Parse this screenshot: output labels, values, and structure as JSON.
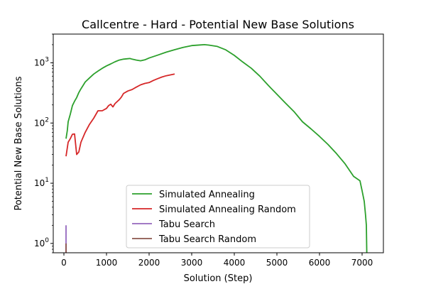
{
  "chart_data": {
    "type": "line",
    "title": "Callcentre - Hard - Potential New Base Solutions",
    "xlabel": "Solution (Step)",
    "ylabel": "Potential New Base Solutions",
    "xlim": [
      -250,
      7500
    ],
    "ylim": [
      0.7,
      3000
    ],
    "yscale": "log",
    "x_ticks": [
      0,
      1000,
      2000,
      3000,
      4000,
      5000,
      6000,
      7000
    ],
    "y_ticks": [
      {
        "value": 1,
        "base": "10",
        "exp": "0"
      },
      {
        "value": 10,
        "base": "10",
        "exp": "1"
      },
      {
        "value": 100,
        "base": "10",
        "exp": "2"
      },
      {
        "value": 1000,
        "base": "10",
        "exp": "3"
      }
    ],
    "grid": false,
    "legend_position": "lower-center",
    "series": [
      {
        "name": "Simulated Annealing",
        "color": "#2ca02c",
        "points": [
          [
            50,
            55
          ],
          [
            80,
            75
          ],
          [
            100,
            105
          ],
          [
            150,
            140
          ],
          [
            200,
            195
          ],
          [
            250,
            230
          ],
          [
            300,
            265
          ],
          [
            350,
            320
          ],
          [
            400,
            370
          ],
          [
            450,
            420
          ],
          [
            500,
            480
          ],
          [
            600,
            560
          ],
          [
            700,
            650
          ],
          [
            800,
            730
          ],
          [
            900,
            810
          ],
          [
            1000,
            890
          ],
          [
            1100,
            960
          ],
          [
            1200,
            1040
          ],
          [
            1300,
            1110
          ],
          [
            1400,
            1150
          ],
          [
            1500,
            1170
          ],
          [
            1550,
            1180
          ],
          [
            1600,
            1150
          ],
          [
            1700,
            1110
          ],
          [
            1800,
            1080
          ],
          [
            1900,
            1120
          ],
          [
            2000,
            1200
          ],
          [
            2200,
            1340
          ],
          [
            2400,
            1500
          ],
          [
            2600,
            1650
          ],
          [
            2800,
            1800
          ],
          [
            3000,
            1930
          ],
          [
            3200,
            1980
          ],
          [
            3300,
            2000
          ],
          [
            3400,
            1970
          ],
          [
            3600,
            1870
          ],
          [
            3800,
            1640
          ],
          [
            4000,
            1330
          ],
          [
            4200,
            1030
          ],
          [
            4400,
            810
          ],
          [
            4600,
            600
          ],
          [
            4800,
            420
          ],
          [
            5000,
            300
          ],
          [
            5200,
            215
          ],
          [
            5400,
            155
          ],
          [
            5600,
            105
          ],
          [
            5800,
            80
          ],
          [
            6000,
            60
          ],
          [
            6200,
            44
          ],
          [
            6400,
            31
          ],
          [
            6600,
            21
          ],
          [
            6800,
            13
          ],
          [
            6950,
            11
          ],
          [
            7000,
            7.5
          ],
          [
            7050,
            5
          ],
          [
            7080,
            3
          ],
          [
            7100,
            2
          ],
          [
            7110,
            0.7
          ]
        ]
      },
      {
        "name": "Simulated Annealing Random",
        "color": "#d62728",
        "points": [
          [
            50,
            28
          ],
          [
            100,
            48
          ],
          [
            150,
            55
          ],
          [
            200,
            65
          ],
          [
            250,
            66
          ],
          [
            300,
            30
          ],
          [
            350,
            33
          ],
          [
            400,
            48
          ],
          [
            500,
            70
          ],
          [
            600,
            95
          ],
          [
            700,
            120
          ],
          [
            800,
            160
          ],
          [
            900,
            160
          ],
          [
            1000,
            175
          ],
          [
            1050,
            195
          ],
          [
            1100,
            205
          ],
          [
            1150,
            185
          ],
          [
            1200,
            210
          ],
          [
            1300,
            245
          ],
          [
            1350,
            270
          ],
          [
            1400,
            310
          ],
          [
            1500,
            340
          ],
          [
            1600,
            360
          ],
          [
            1700,
            395
          ],
          [
            1800,
            430
          ],
          [
            1900,
            455
          ],
          [
            2000,
            470
          ],
          [
            2100,
            510
          ],
          [
            2200,
            545
          ],
          [
            2300,
            580
          ],
          [
            2400,
            610
          ],
          [
            2500,
            630
          ],
          [
            2600,
            650
          ]
        ]
      },
      {
        "name": "Tabu Search",
        "color": "#9467bd",
        "points": [
          [
            50,
            0.7
          ],
          [
            50,
            2
          ]
        ]
      },
      {
        "name": "Tabu Search Random",
        "color": "#8c564b",
        "points": [
          [
            50,
            0.7
          ],
          [
            50,
            1
          ]
        ]
      }
    ]
  }
}
